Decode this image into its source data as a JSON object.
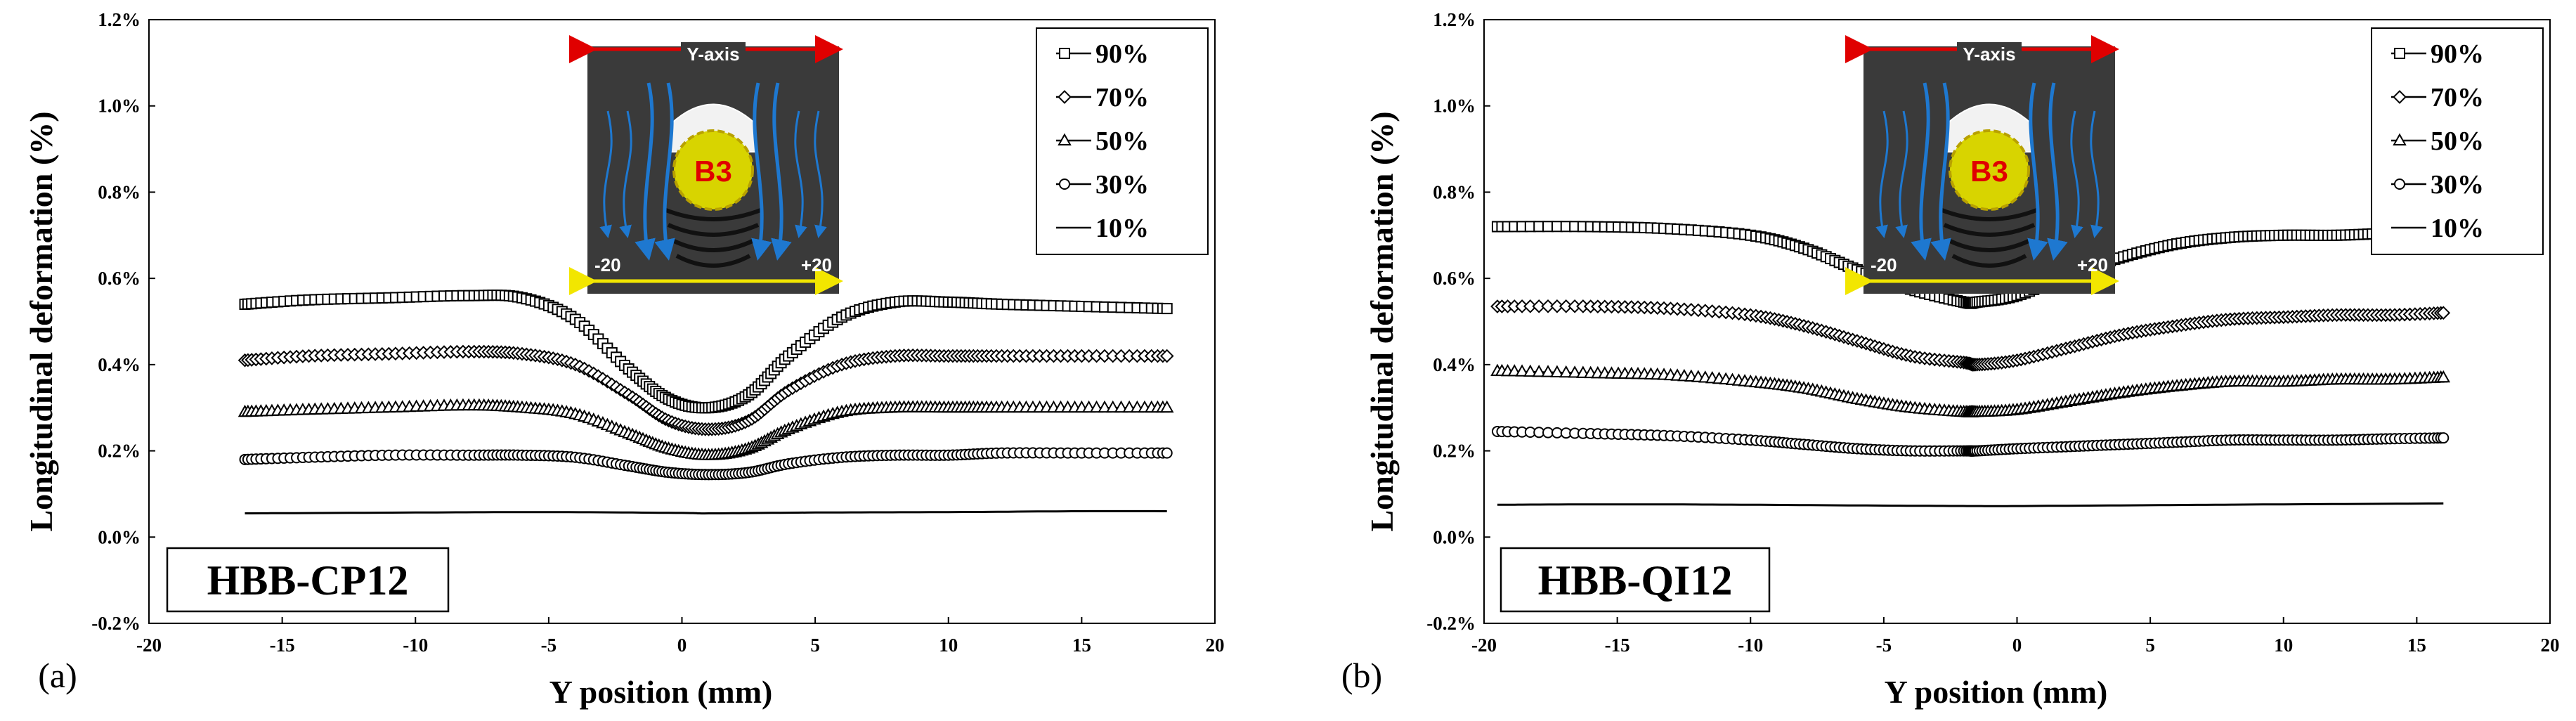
{
  "chart_data": [
    {
      "type": "line",
      "panel": "(a)",
      "tag": "HBB-CP12",
      "xlabel": "Y position (mm)",
      "ylabel": "Longitudinal deformation (%)",
      "xlim": [
        -20,
        20
      ],
      "ylim": [
        -0.2,
        1.2
      ],
      "x_ticks": [
        "-20",
        "-15",
        "-10",
        "-5",
        "0",
        "5",
        "10",
        "15",
        "20"
      ],
      "y_ticks": [
        "-0.2%",
        "0.0%",
        "0.2%",
        "0.4%",
        "0.6%",
        "0.8%",
        "1.0%",
        "1.2%"
      ],
      "grid": false,
      "legend_position": "top-right",
      "inset": {
        "top_label": "Y-axis",
        "left_label": "-20",
        "right_label": "+20",
        "center_label": "B3"
      },
      "series": [
        {
          "name": "90%",
          "marker": "square",
          "x": [
            -16.4,
            -14,
            -11,
            -8,
            -6,
            -4,
            -2,
            -0.5,
            1,
            2.5,
            4,
            6,
            8,
            10,
            12,
            15,
            18.2
          ],
          "values": [
            0.54,
            0.55,
            0.555,
            0.56,
            0.555,
            0.505,
            0.39,
            0.32,
            0.3,
            0.33,
            0.42,
            0.51,
            0.545,
            0.545,
            0.54,
            0.535,
            0.53
          ]
        },
        {
          "name": "70%",
          "marker": "diamond",
          "x": [
            -16.4,
            -14,
            -11,
            -8,
            -6,
            -4,
            -2,
            -0.5,
            1,
            2.5,
            4,
            6,
            8,
            10,
            12,
            15,
            18.2
          ],
          "values": [
            0.41,
            0.42,
            0.425,
            0.43,
            0.425,
            0.4,
            0.33,
            0.27,
            0.25,
            0.27,
            0.34,
            0.4,
            0.42,
            0.42,
            0.42,
            0.42,
            0.42
          ]
        },
        {
          "name": "50%",
          "marker": "triangle",
          "x": [
            -16.4,
            -14,
            -11,
            -8,
            -6,
            -4,
            -2,
            -0.5,
            1,
            2.5,
            4,
            6,
            8,
            10,
            12,
            15,
            18.2
          ],
          "values": [
            0.29,
            0.295,
            0.3,
            0.305,
            0.3,
            0.285,
            0.24,
            0.205,
            0.19,
            0.205,
            0.25,
            0.29,
            0.3,
            0.3,
            0.3,
            0.3,
            0.3
          ]
        },
        {
          "name": "30%",
          "marker": "circle",
          "x": [
            -16.4,
            -14,
            -11,
            -8,
            -6,
            -4,
            -2,
            -0.5,
            1,
            2.5,
            4,
            6,
            8,
            10,
            12,
            15,
            18.2
          ],
          "values": [
            0.18,
            0.185,
            0.19,
            0.19,
            0.19,
            0.185,
            0.165,
            0.15,
            0.145,
            0.15,
            0.17,
            0.185,
            0.19,
            0.19,
            0.195,
            0.195,
            0.195
          ]
        },
        {
          "name": "10%",
          "marker": "none",
          "x": [
            -16.4,
            -10,
            -5,
            0,
            1,
            5,
            10,
            15,
            18.2
          ],
          "values": [
            0.055,
            0.057,
            0.058,
            0.056,
            0.055,
            0.057,
            0.058,
            0.06,
            0.06
          ]
        }
      ]
    },
    {
      "type": "line",
      "panel": "(b)",
      "tag": "HBB-QI12",
      "xlabel": "Y position (mm)",
      "ylabel": "Longitudinal deformation (%)",
      "xlim": [
        -20,
        20
      ],
      "ylim": [
        -0.2,
        1.2
      ],
      "x_ticks": [
        "-20",
        "-15",
        "-10",
        "-5",
        "0",
        "5",
        "10",
        "15",
        "20"
      ],
      "y_ticks": [
        "-0.2%",
        "0.0%",
        "0.2%",
        "0.4%",
        "0.6%",
        "0.8%",
        "1.0%",
        "1.2%"
      ],
      "grid": false,
      "legend_position": "top-right",
      "inset": {
        "top_label": "Y-axis",
        "left_label": "-20",
        "right_label": "+20",
        "center_label": "B3"
      },
      "series": [
        {
          "name": "90%",
          "marker": "square",
          "x": [
            -19.5,
            -16,
            -13,
            -10,
            -8,
            -6,
            -4,
            -2,
            -1.5,
            0,
            2,
            4,
            6,
            8,
            10,
            12,
            14,
            16
          ],
          "values": [
            0.72,
            0.72,
            0.715,
            0.7,
            0.67,
            0.62,
            0.575,
            0.545,
            0.545,
            0.56,
            0.61,
            0.65,
            0.68,
            0.695,
            0.7,
            0.7,
            0.705,
            0.71
          ]
        },
        {
          "name": "70%",
          "marker": "diamond",
          "x": [
            -19.5,
            -16,
            -13,
            -10,
            -8,
            -6,
            -4,
            -2,
            -1.5,
            0,
            2,
            4,
            6,
            8,
            10,
            12,
            14,
            16
          ],
          "values": [
            0.535,
            0.535,
            0.53,
            0.515,
            0.49,
            0.455,
            0.42,
            0.405,
            0.4,
            0.41,
            0.44,
            0.47,
            0.49,
            0.505,
            0.51,
            0.515,
            0.515,
            0.52
          ]
        },
        {
          "name": "50%",
          "marker": "triangle",
          "x": [
            -19.5,
            -16,
            -13,
            -10,
            -8,
            -6,
            -4,
            -2,
            -1.5,
            0,
            2,
            4,
            6,
            8,
            10,
            12,
            14,
            16
          ],
          "values": [
            0.385,
            0.38,
            0.375,
            0.36,
            0.345,
            0.32,
            0.3,
            0.29,
            0.29,
            0.295,
            0.315,
            0.335,
            0.35,
            0.36,
            0.36,
            0.365,
            0.365,
            0.37
          ]
        },
        {
          "name": "30%",
          "marker": "circle",
          "x": [
            -19.5,
            -16,
            -13,
            -10,
            -8,
            -6,
            -4,
            -2,
            -1.5,
            0,
            2,
            4,
            6,
            8,
            10,
            12,
            14,
            16
          ],
          "values": [
            0.245,
            0.24,
            0.235,
            0.225,
            0.215,
            0.205,
            0.2,
            0.2,
            0.2,
            0.205,
            0.21,
            0.215,
            0.22,
            0.225,
            0.225,
            0.225,
            0.228,
            0.23
          ]
        },
        {
          "name": "10%",
          "marker": "none",
          "x": [
            -19.5,
            -15,
            -10,
            -5,
            -1.5,
            0,
            5,
            10,
            16
          ],
          "values": [
            0.075,
            0.076,
            0.075,
            0.073,
            0.072,
            0.072,
            0.074,
            0.076,
            0.078
          ]
        }
      ]
    }
  ]
}
